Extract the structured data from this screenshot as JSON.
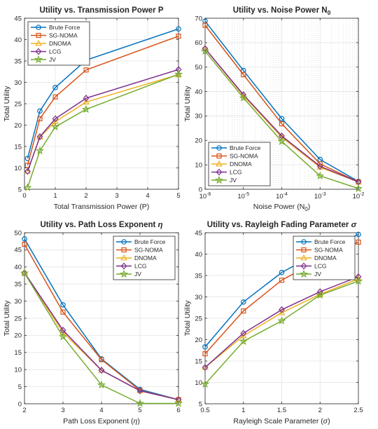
{
  "legend_entries": [
    "Brute Force",
    "SG-NOMA",
    "DNOMA",
    "LCG",
    "JV"
  ],
  "series_colors": {
    "Brute Force": "#0072BD",
    "SG-NOMA": "#D95319",
    "DNOMA": "#EDB120",
    "LCG": "#7E2F8E",
    "JV": "#77AC30"
  },
  "series_markers": {
    "Brute Force": "circle",
    "SG-NOMA": "square",
    "DNOMA": "triangle",
    "LCG": "diamond",
    "JV": "star"
  },
  "chart_data": [
    {
      "type": "line",
      "title": "Utility vs. Transmission Power P",
      "xlabel": "Total Transmission Power (P)",
      "ylabel": "Total Utility",
      "xlim": [
        0,
        5
      ],
      "ylim": [
        5,
        45
      ],
      "xticks": [
        0,
        1,
        2,
        3,
        4,
        5
      ],
      "yticks": [
        5,
        10,
        15,
        20,
        25,
        30,
        35,
        40,
        45
      ],
      "x": [
        0.1,
        0.5,
        1,
        2,
        5
      ],
      "grid": true,
      "legend": "top-left",
      "series": [
        {
          "name": "Brute Force",
          "values": [
            12.2,
            23.3,
            28.8,
            35.2,
            42.5
          ]
        },
        {
          "name": "SG-NOMA",
          "values": [
            10.6,
            21.5,
            26.6,
            32.9,
            40.8
          ]
        },
        {
          "name": "DNOMA",
          "values": [
            9.2,
            17.2,
            20.8,
            25.4,
            31.8
          ]
        },
        {
          "name": "LCG",
          "values": [
            9.2,
            17.3,
            21.5,
            26.3,
            33.0
          ]
        },
        {
          "name": "JV",
          "values": [
            5.4,
            14.0,
            19.6,
            23.7,
            31.9
          ]
        }
      ]
    },
    {
      "type": "line",
      "title_parts": [
        "Utility vs. Noise Power N",
        "0"
      ],
      "xlabel_parts": [
        "Noise Power (N",
        "0",
        ")"
      ],
      "ylabel": "Total Utility",
      "xscale": "log",
      "xlim": [
        1e-06,
        0.01
      ],
      "ylim": [
        0,
        70
      ],
      "xtick_exponents": [
        "-6",
        "-5",
        "-4",
        "-3",
        "-2"
      ],
      "yticks": [
        0,
        10,
        20,
        30,
        40,
        50,
        60,
        70
      ],
      "x": [
        1e-06,
        1e-05,
        0.0001,
        0.001,
        0.01
      ],
      "grid": true,
      "minor_grid": true,
      "legend": "bottom-left",
      "series": [
        {
          "name": "Brute Force",
          "values": [
            68.8,
            48.6,
            28.9,
            12.2,
            3.2
          ]
        },
        {
          "name": "SG-NOMA",
          "values": [
            67.1,
            46.9,
            26.8,
            10.4,
            3.0
          ]
        },
        {
          "name": "DNOMA",
          "values": [
            57.6,
            38.3,
            21.3,
            9.0,
            3.0
          ]
        },
        {
          "name": "LCG",
          "values": [
            57.6,
            38.7,
            21.8,
            9.4,
            3.0
          ]
        },
        {
          "name": "JV",
          "values": [
            56.5,
            37.4,
            19.6,
            5.5,
            0.3
          ]
        }
      ]
    },
    {
      "type": "line",
      "title_parts": [
        "Utility vs. Path Loss Exponent ",
        "η"
      ],
      "xlabel_parts": [
        "Path Loss Exponent (",
        "η",
        ")"
      ],
      "ylabel": "Total Utility",
      "xlim": [
        2,
        6
      ],
      "ylim": [
        0,
        50
      ],
      "xticks": [
        2,
        3,
        4,
        5,
        6
      ],
      "yticks": [
        0,
        5,
        10,
        15,
        20,
        25,
        30,
        35,
        40,
        45,
        50
      ],
      "x": [
        2,
        3,
        4,
        5,
        6
      ],
      "grid": true,
      "legend": "top-right",
      "series": [
        {
          "name": "Brute Force",
          "values": [
            48.2,
            28.9,
            13.1,
            4.2,
            1.2
          ]
        },
        {
          "name": "SG-NOMA",
          "values": [
            46.6,
            26.8,
            12.9,
            3.9,
            1.2
          ]
        },
        {
          "name": "DNOMA",
          "values": [
            38.3,
            20.8,
            9.8,
            3.8,
            1.2
          ]
        },
        {
          "name": "LCG",
          "values": [
            38.3,
            21.5,
            9.8,
            3.8,
            1.2
          ]
        },
        {
          "name": "JV",
          "values": [
            38.2,
            19.6,
            5.5,
            0.1,
            0.1
          ]
        }
      ]
    },
    {
      "type": "line",
      "title_parts": [
        "Utility vs. Rayleigh Fading Parameter ",
        "σ"
      ],
      "xlabel_parts": [
        "Rayleigh Scale Parameter (",
        "σ",
        ")"
      ],
      "ylabel": "Total Utility",
      "xlim": [
        0.5,
        2.5
      ],
      "ylim": [
        5,
        45
      ],
      "xticks": [
        0.5,
        1,
        1.5,
        2,
        2.5
      ],
      "yticks": [
        5,
        10,
        15,
        20,
        25,
        30,
        35,
        40,
        45
      ],
      "x": [
        0.5,
        1,
        1.5,
        2,
        2.5
      ],
      "grid": true,
      "legend": "top-right",
      "series": [
        {
          "name": "Brute Force",
          "values": [
            18.3,
            28.8,
            35.7,
            40.6,
            44.6
          ]
        },
        {
          "name": "SG-NOMA",
          "values": [
            16.7,
            26.7,
            33.9,
            38.8,
            42.8
          ]
        },
        {
          "name": "DNOMA",
          "values": [
            13.5,
            20.9,
            26.3,
            30.6,
            34.2
          ]
        },
        {
          "name": "LCG",
          "values": [
            13.5,
            21.5,
            27.0,
            31.2,
            34.7
          ]
        },
        {
          "name": "JV",
          "values": [
            9.6,
            19.6,
            24.4,
            30.4,
            33.7
          ]
        }
      ]
    }
  ]
}
